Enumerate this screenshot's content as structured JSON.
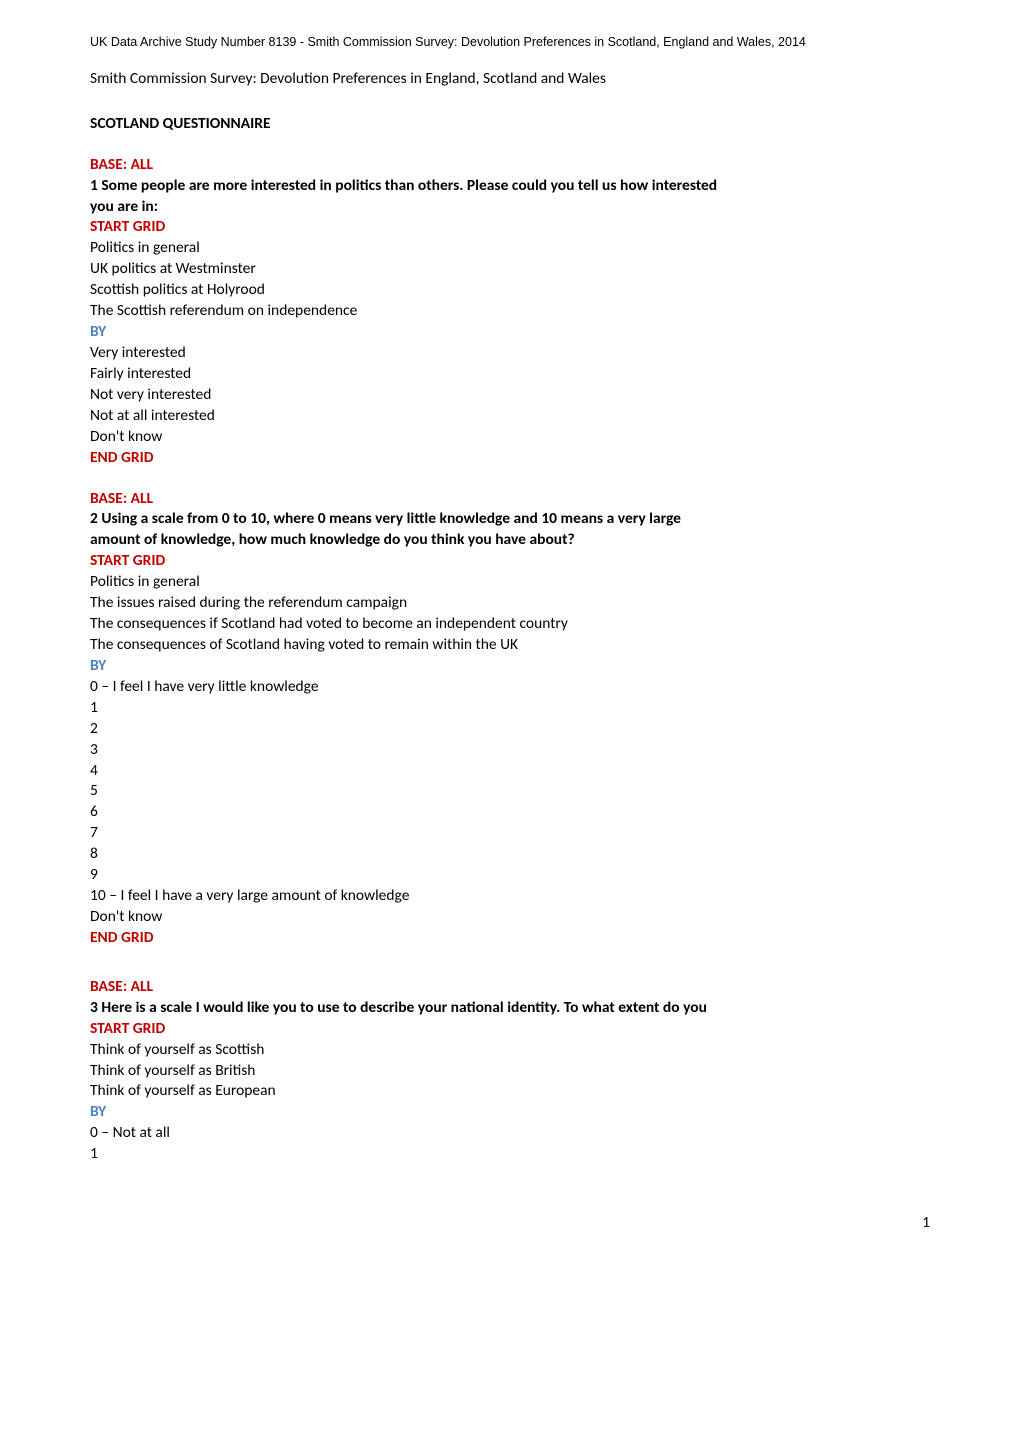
{
  "archive_line": "UK Data Archive Study Number 8139 - Smith Commission Survey: Devolution Preferences in Scotland, England and Wales, 2014",
  "survey_title": "Smith Commission Survey: Devolution Preferences in England, Scotland and Wales",
  "section_heading": "SCOTLAND QUESTIONNAIRE",
  "labels": {
    "base_all": "BASE: ALL",
    "start_grid": "START GRID",
    "by": "BY",
    "end_grid": "END GRID",
    "dont_know": "Don't know"
  },
  "q1": {
    "text_l1": "1 Some people are more interested in politics than others. Please could you tell us how interested",
    "text_l2": "you are in:",
    "rows": [
      "Politics in general",
      "UK politics at Westminster",
      "Scottish politics at Holyrood",
      "The Scottish referendum on independence"
    ],
    "scale": [
      "Very interested",
      "Fairly interested",
      "Not very interested",
      "Not at all interested"
    ]
  },
  "q2": {
    "text_l1": "2 Using a scale from 0 to 10, where 0 means very little knowledge and 10 means a very large",
    "text_l2": "amount of knowledge, how much knowledge do you think you have about?",
    "rows": [
      "Politics in general",
      "The issues raised during the referendum campaign",
      "The consequences if Scotland had voted to become an independent country",
      "The consequences of Scotland having voted to remain within the UK"
    ],
    "scale_low": "0 – I feel I have very little knowledge",
    "scale_nums": [
      "1",
      "2",
      "3",
      "4",
      "5",
      "6",
      "7",
      "8",
      "9"
    ],
    "scale_high": "10 – I feel I have a very large amount of knowledge"
  },
  "q3": {
    "text": "3 Here is a scale I would like you to use to describe your national identity. To what extent do you",
    "rows": [
      "Think of yourself as Scottish",
      "Think of yourself as British",
      "Think of yourself as European"
    ],
    "scale_low": "0 – Not at all",
    "scale_nums": [
      "1"
    ]
  },
  "page_number": "1",
  "colors": {
    "red": "#c00000",
    "blue": "#4f81bd",
    "black": "#000000",
    "bg": "#ffffff"
  },
  "typography": {
    "body_font": "Calibri",
    "body_size_pt": 11.5,
    "archive_font": "Arial",
    "archive_size_pt": 9.5
  }
}
